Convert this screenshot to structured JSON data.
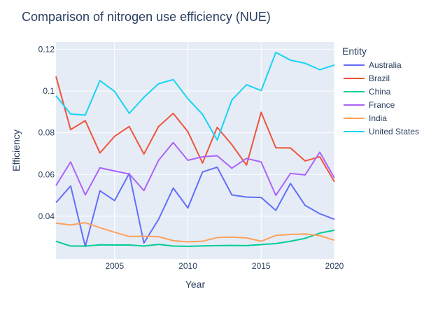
{
  "chart_data": {
    "type": "line",
    "title": "Comparison of nitrogen use efficiency (NUE)",
    "xlabel": "Year",
    "ylabel": "Efficiency",
    "xlim": [
      2001,
      2020
    ],
    "ylim": [
      0.0195,
      0.1235
    ],
    "x_ticks": [
      2005,
      2010,
      2015,
      2020
    ],
    "y_ticks": [
      0.04,
      0.06,
      0.08,
      0.1,
      0.12
    ],
    "y_tick_labels": [
      "0.04",
      "0.06",
      "0.08",
      "0.1",
      "0.12"
    ],
    "grid": true,
    "legend_title": "Entity",
    "legend_position": "right",
    "x": [
      2001,
      2002,
      2003,
      2004,
      2005,
      2006,
      2007,
      2008,
      2009,
      2010,
      2011,
      2012,
      2013,
      2014,
      2015,
      2016,
      2017,
      2018,
      2019,
      2020
    ],
    "series": [
      {
        "name": "Australia",
        "color": "#636efa",
        "values": [
          0.0465,
          0.0545,
          0.0255,
          0.0522,
          0.0475,
          0.0605,
          0.0272,
          0.0385,
          0.0535,
          0.044,
          0.0612,
          0.0635,
          0.0502,
          0.0492,
          0.049,
          0.0428,
          0.0557,
          0.0452,
          0.0412,
          0.0385
        ]
      },
      {
        "name": "Brazil",
        "color": "#ef553b",
        "values": [
          0.107,
          0.0815,
          0.0858,
          0.0703,
          0.0783,
          0.083,
          0.0698,
          0.083,
          0.0893,
          0.0805,
          0.0655,
          0.0826,
          0.0743,
          0.0645,
          0.0898,
          0.0728,
          0.0727,
          0.0665,
          0.0685,
          0.0565
        ]
      },
      {
        "name": "China",
        "color": "#00cc96",
        "values": [
          0.028,
          0.0257,
          0.0257,
          0.0263,
          0.0262,
          0.0262,
          0.0257,
          0.0265,
          0.0257,
          0.0256,
          0.0258,
          0.0259,
          0.026,
          0.0259,
          0.0264,
          0.0269,
          0.028,
          0.0294,
          0.0319,
          0.0333
        ]
      },
      {
        "name": "France",
        "color": "#ab63fa",
        "values": [
          0.0547,
          0.066,
          0.0502,
          0.0632,
          0.0617,
          0.0602,
          0.0523,
          0.0668,
          0.0753,
          0.0668,
          0.0685,
          0.069,
          0.063,
          0.0677,
          0.066,
          0.05,
          0.0605,
          0.0598,
          0.0707,
          0.0583
        ]
      },
      {
        "name": "India",
        "color": "#ffa15a",
        "values": [
          0.0367,
          0.0358,
          0.0369,
          0.0345,
          0.0323,
          0.0303,
          0.0304,
          0.0302,
          0.0283,
          0.0277,
          0.028,
          0.0298,
          0.03,
          0.0296,
          0.028,
          0.0308,
          0.0313,
          0.0315,
          0.0307,
          0.0285
        ]
      },
      {
        "name": "United States",
        "color": "#19d3f3",
        "values": [
          0.0977,
          0.089,
          0.0885,
          0.105,
          0.0998,
          0.0893,
          0.097,
          0.1035,
          0.1055,
          0.0963,
          0.0888,
          0.0765,
          0.0957,
          0.103,
          0.1002,
          0.1185,
          0.1148,
          0.1133,
          0.1102,
          0.1125
        ]
      }
    ]
  }
}
